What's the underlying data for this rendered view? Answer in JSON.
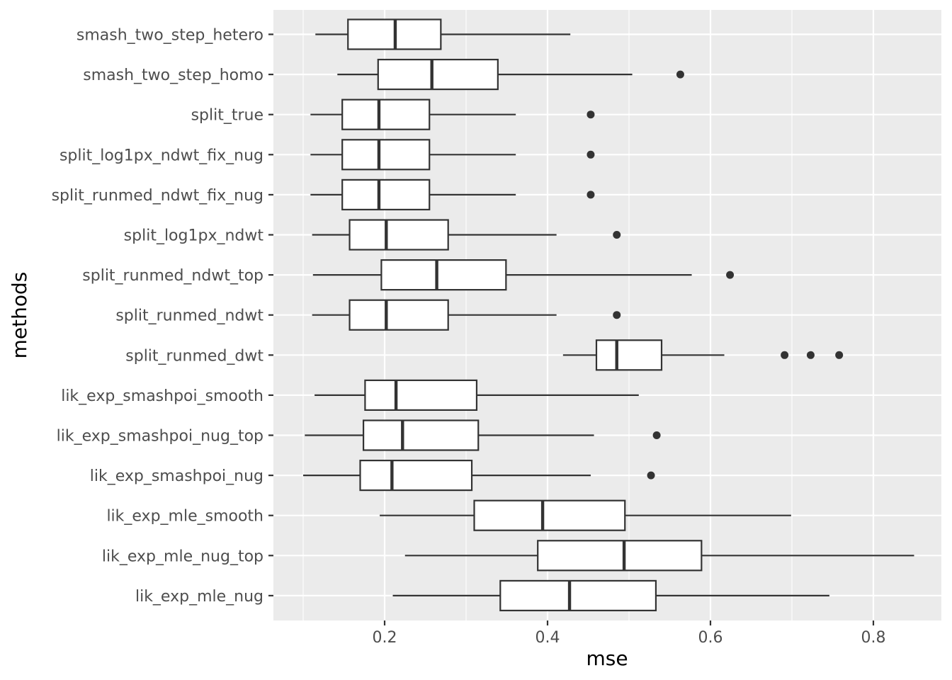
{
  "chart_data": {
    "type": "boxplot",
    "orientation": "horizontal",
    "xlabel": "mse",
    "ylabel": "methods",
    "xlim": [
      0.063,
      0.88
    ],
    "x_ticks": [
      0.2,
      0.4,
      0.6,
      0.8
    ],
    "x_tick_labels": [
      "0.2",
      "0.4",
      "0.6",
      "0.8"
    ],
    "grid": true,
    "panel_background": "#ebebeb",
    "grid_color": "#ffffff",
    "box_fill": "#ffffff",
    "line_color": "#333333",
    "categories": [
      "smash_two_step_hetero",
      "smash_two_step_homo",
      "split_true",
      "split_log1px_ndwt_fix_nug",
      "split_runmed_ndwt_fix_nug",
      "split_log1px_ndwt",
      "split_runmed_ndwt_top",
      "split_runmed_ndwt",
      "split_runmed_dwt",
      "lik_exp_smashpoi_smooth",
      "lik_exp_smashpoi_nug_top",
      "lik_exp_smashpoi_nug",
      "lik_exp_mle_smooth",
      "lik_exp_mle_nug_top",
      "lik_exp_mle_nug"
    ],
    "boxes": [
      {
        "whisker_low": 0.115,
        "q1": 0.155,
        "median": 0.213,
        "q3": 0.269,
        "whisker_high": 0.428,
        "outliers": []
      },
      {
        "whisker_low": 0.142,
        "q1": 0.192,
        "median": 0.258,
        "q3": 0.339,
        "whisker_high": 0.504,
        "outliers": [
          0.563
        ]
      },
      {
        "whisker_low": 0.109,
        "q1": 0.148,
        "median": 0.193,
        "q3": 0.255,
        "whisker_high": 0.361,
        "outliers": [
          0.453
        ]
      },
      {
        "whisker_low": 0.109,
        "q1": 0.148,
        "median": 0.193,
        "q3": 0.255,
        "whisker_high": 0.361,
        "outliers": [
          0.453
        ]
      },
      {
        "whisker_low": 0.109,
        "q1": 0.148,
        "median": 0.193,
        "q3": 0.255,
        "whisker_high": 0.361,
        "outliers": [
          0.453
        ]
      },
      {
        "whisker_low": 0.111,
        "q1": 0.157,
        "median": 0.202,
        "q3": 0.278,
        "whisker_high": 0.411,
        "outliers": [
          0.485
        ]
      },
      {
        "whisker_low": 0.112,
        "q1": 0.196,
        "median": 0.264,
        "q3": 0.349,
        "whisker_high": 0.577,
        "outliers": [
          0.624
        ]
      },
      {
        "whisker_low": 0.111,
        "q1": 0.157,
        "median": 0.202,
        "q3": 0.278,
        "whisker_high": 0.411,
        "outliers": [
          0.485
        ]
      },
      {
        "whisker_low": 0.419,
        "q1": 0.46,
        "median": 0.485,
        "q3": 0.54,
        "whisker_high": 0.617,
        "outliers": [
          0.691,
          0.723,
          0.758
        ]
      },
      {
        "whisker_low": 0.114,
        "q1": 0.176,
        "median": 0.214,
        "q3": 0.313,
        "whisker_high": 0.512,
        "outliers": []
      },
      {
        "whisker_low": 0.102,
        "q1": 0.174,
        "median": 0.222,
        "q3": 0.315,
        "whisker_high": 0.457,
        "outliers": [
          0.534
        ]
      },
      {
        "whisker_low": 0.1,
        "q1": 0.17,
        "median": 0.209,
        "q3": 0.307,
        "whisker_high": 0.453,
        "outliers": [
          0.527
        ]
      },
      {
        "whisker_low": 0.194,
        "q1": 0.31,
        "median": 0.394,
        "q3": 0.495,
        "whisker_high": 0.699,
        "outliers": []
      },
      {
        "whisker_low": 0.225,
        "q1": 0.388,
        "median": 0.494,
        "q3": 0.589,
        "whisker_high": 0.85,
        "outliers": []
      },
      {
        "whisker_low": 0.21,
        "q1": 0.342,
        "median": 0.427,
        "q3": 0.533,
        "whisker_high": 0.746,
        "outliers": []
      }
    ]
  }
}
